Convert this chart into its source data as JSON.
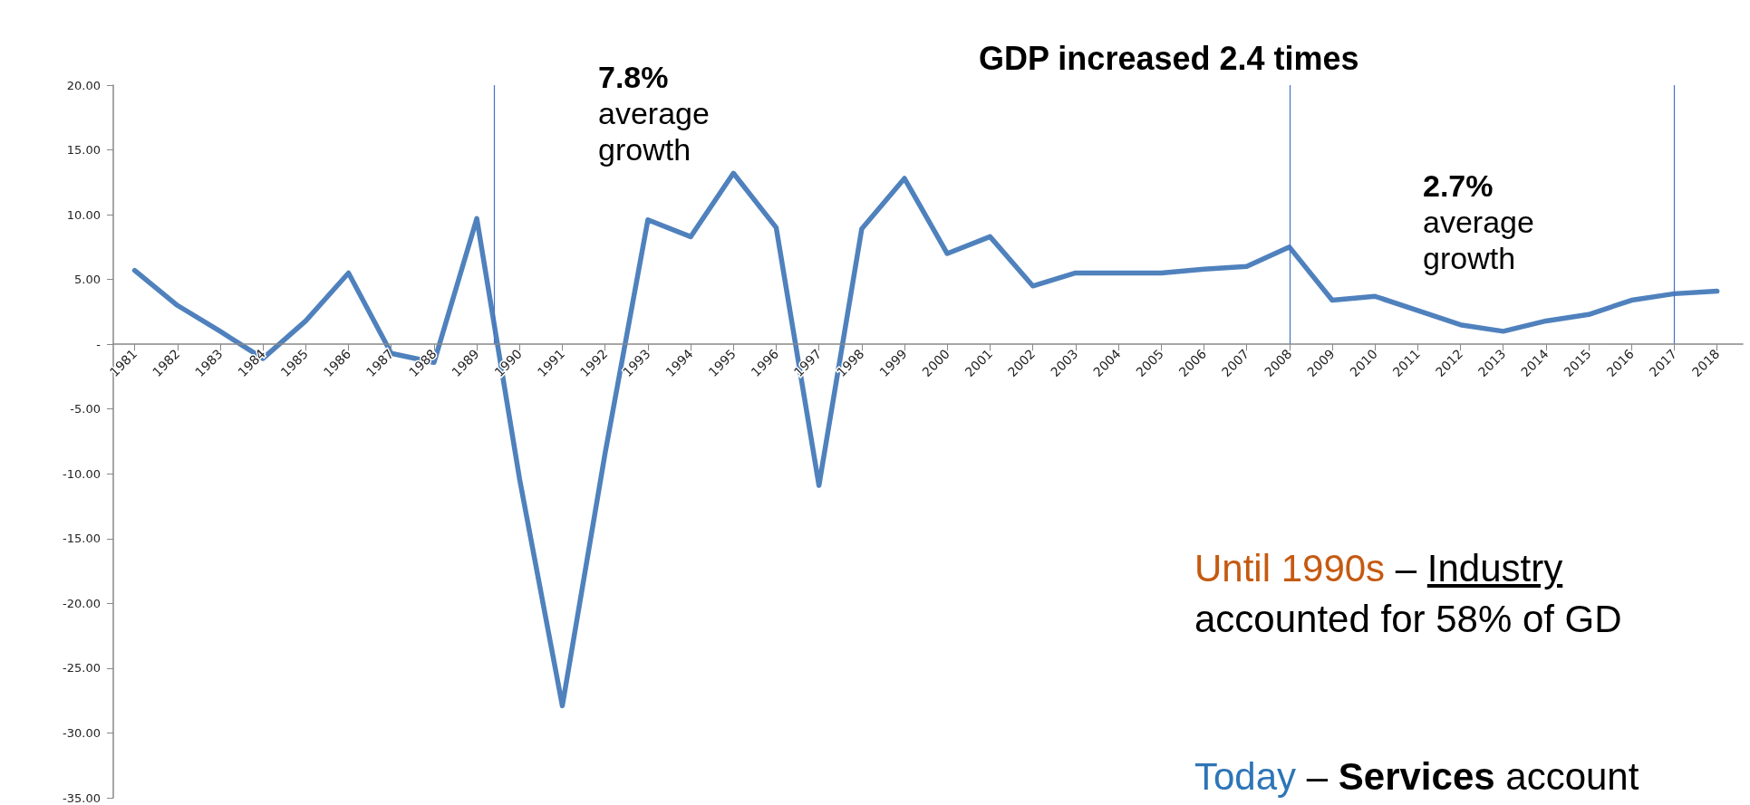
{
  "chart_data": {
    "type": "line",
    "x": [
      1981,
      1982,
      1983,
      1984,
      1985,
      1986,
      1987,
      1988,
      1989,
      1990,
      1991,
      1992,
      1993,
      1994,
      1995,
      1996,
      1997,
      1998,
      1999,
      2000,
      2001,
      2002,
      2003,
      2004,
      2005,
      2006,
      2007,
      2008,
      2009,
      2010,
      2011,
      2012,
      2013,
      2014,
      2015,
      2016,
      2017,
      2018
    ],
    "series": [
      {
        "color": "#4f81bd",
        "values": [
          5.7,
          3.0,
          1.0,
          -1.1,
          1.8,
          5.5,
          -0.7,
          -1.4,
          9.7,
          -10.4,
          -27.9,
          -8.4,
          9.6,
          8.3,
          13.2,
          9.0,
          -10.9,
          8.9,
          12.8,
          7.0,
          8.3,
          4.5,
          5.5,
          5.5,
          5.5,
          5.8,
          6.0,
          7.5,
          3.4,
          3.7,
          2.6,
          1.5,
          1.0,
          1.8,
          2.3,
          3.4,
          3.9,
          4.1
        ]
      }
    ],
    "xlim": [
      1980.5,
      2018.6
    ],
    "xticks": [
      1981,
      1982,
      1983,
      1984,
      1985,
      1986,
      1987,
      1988,
      1989,
      1990,
      1991,
      1992,
      1993,
      1994,
      1995,
      1996,
      1997,
      1998,
      1999,
      2000,
      2001,
      2002,
      2003,
      2004,
      2005,
      2006,
      2007,
      2008,
      2009,
      2010,
      2011,
      2012,
      2013,
      2014,
      2015,
      2016,
      2017,
      2018
    ],
    "ylim": [
      -35,
      20
    ],
    "yticks": [
      {
        "value": -35,
        "label": "-35.00"
      },
      {
        "value": -30,
        "label": "-30.00"
      },
      {
        "value": -25,
        "label": "-25.00"
      },
      {
        "value": -20,
        "label": "-20.00"
      },
      {
        "value": -15,
        "label": "-15.00"
      },
      {
        "value": -10,
        "label": "-10.00"
      },
      {
        "value": -5,
        "label": "-5.00"
      },
      {
        "value": 0,
        "label": "-"
      },
      {
        "value": 5,
        "label": "5.00"
      },
      {
        "value": 10,
        "label": "10.00"
      },
      {
        "value": 15,
        "label": "15.00"
      },
      {
        "value": 20,
        "label": "20.00"
      }
    ],
    "ref_lines": [
      {
        "axis": "x",
        "value": 1989.4,
        "color": "#4472c4"
      },
      {
        "axis": "x",
        "value": 2008,
        "color": "#4472c4"
      },
      {
        "axis": "x",
        "value": 2017,
        "color": "#4472c4"
      }
    ],
    "annotations": [
      "GDP increased 2.4 times",
      "7.8% average growth",
      "2.7% average growth",
      "Until 1990s – Industry accounted for 58% of GD",
      "Today – Services account"
    ],
    "marker": "none",
    "line_style": "solid"
  }
}
